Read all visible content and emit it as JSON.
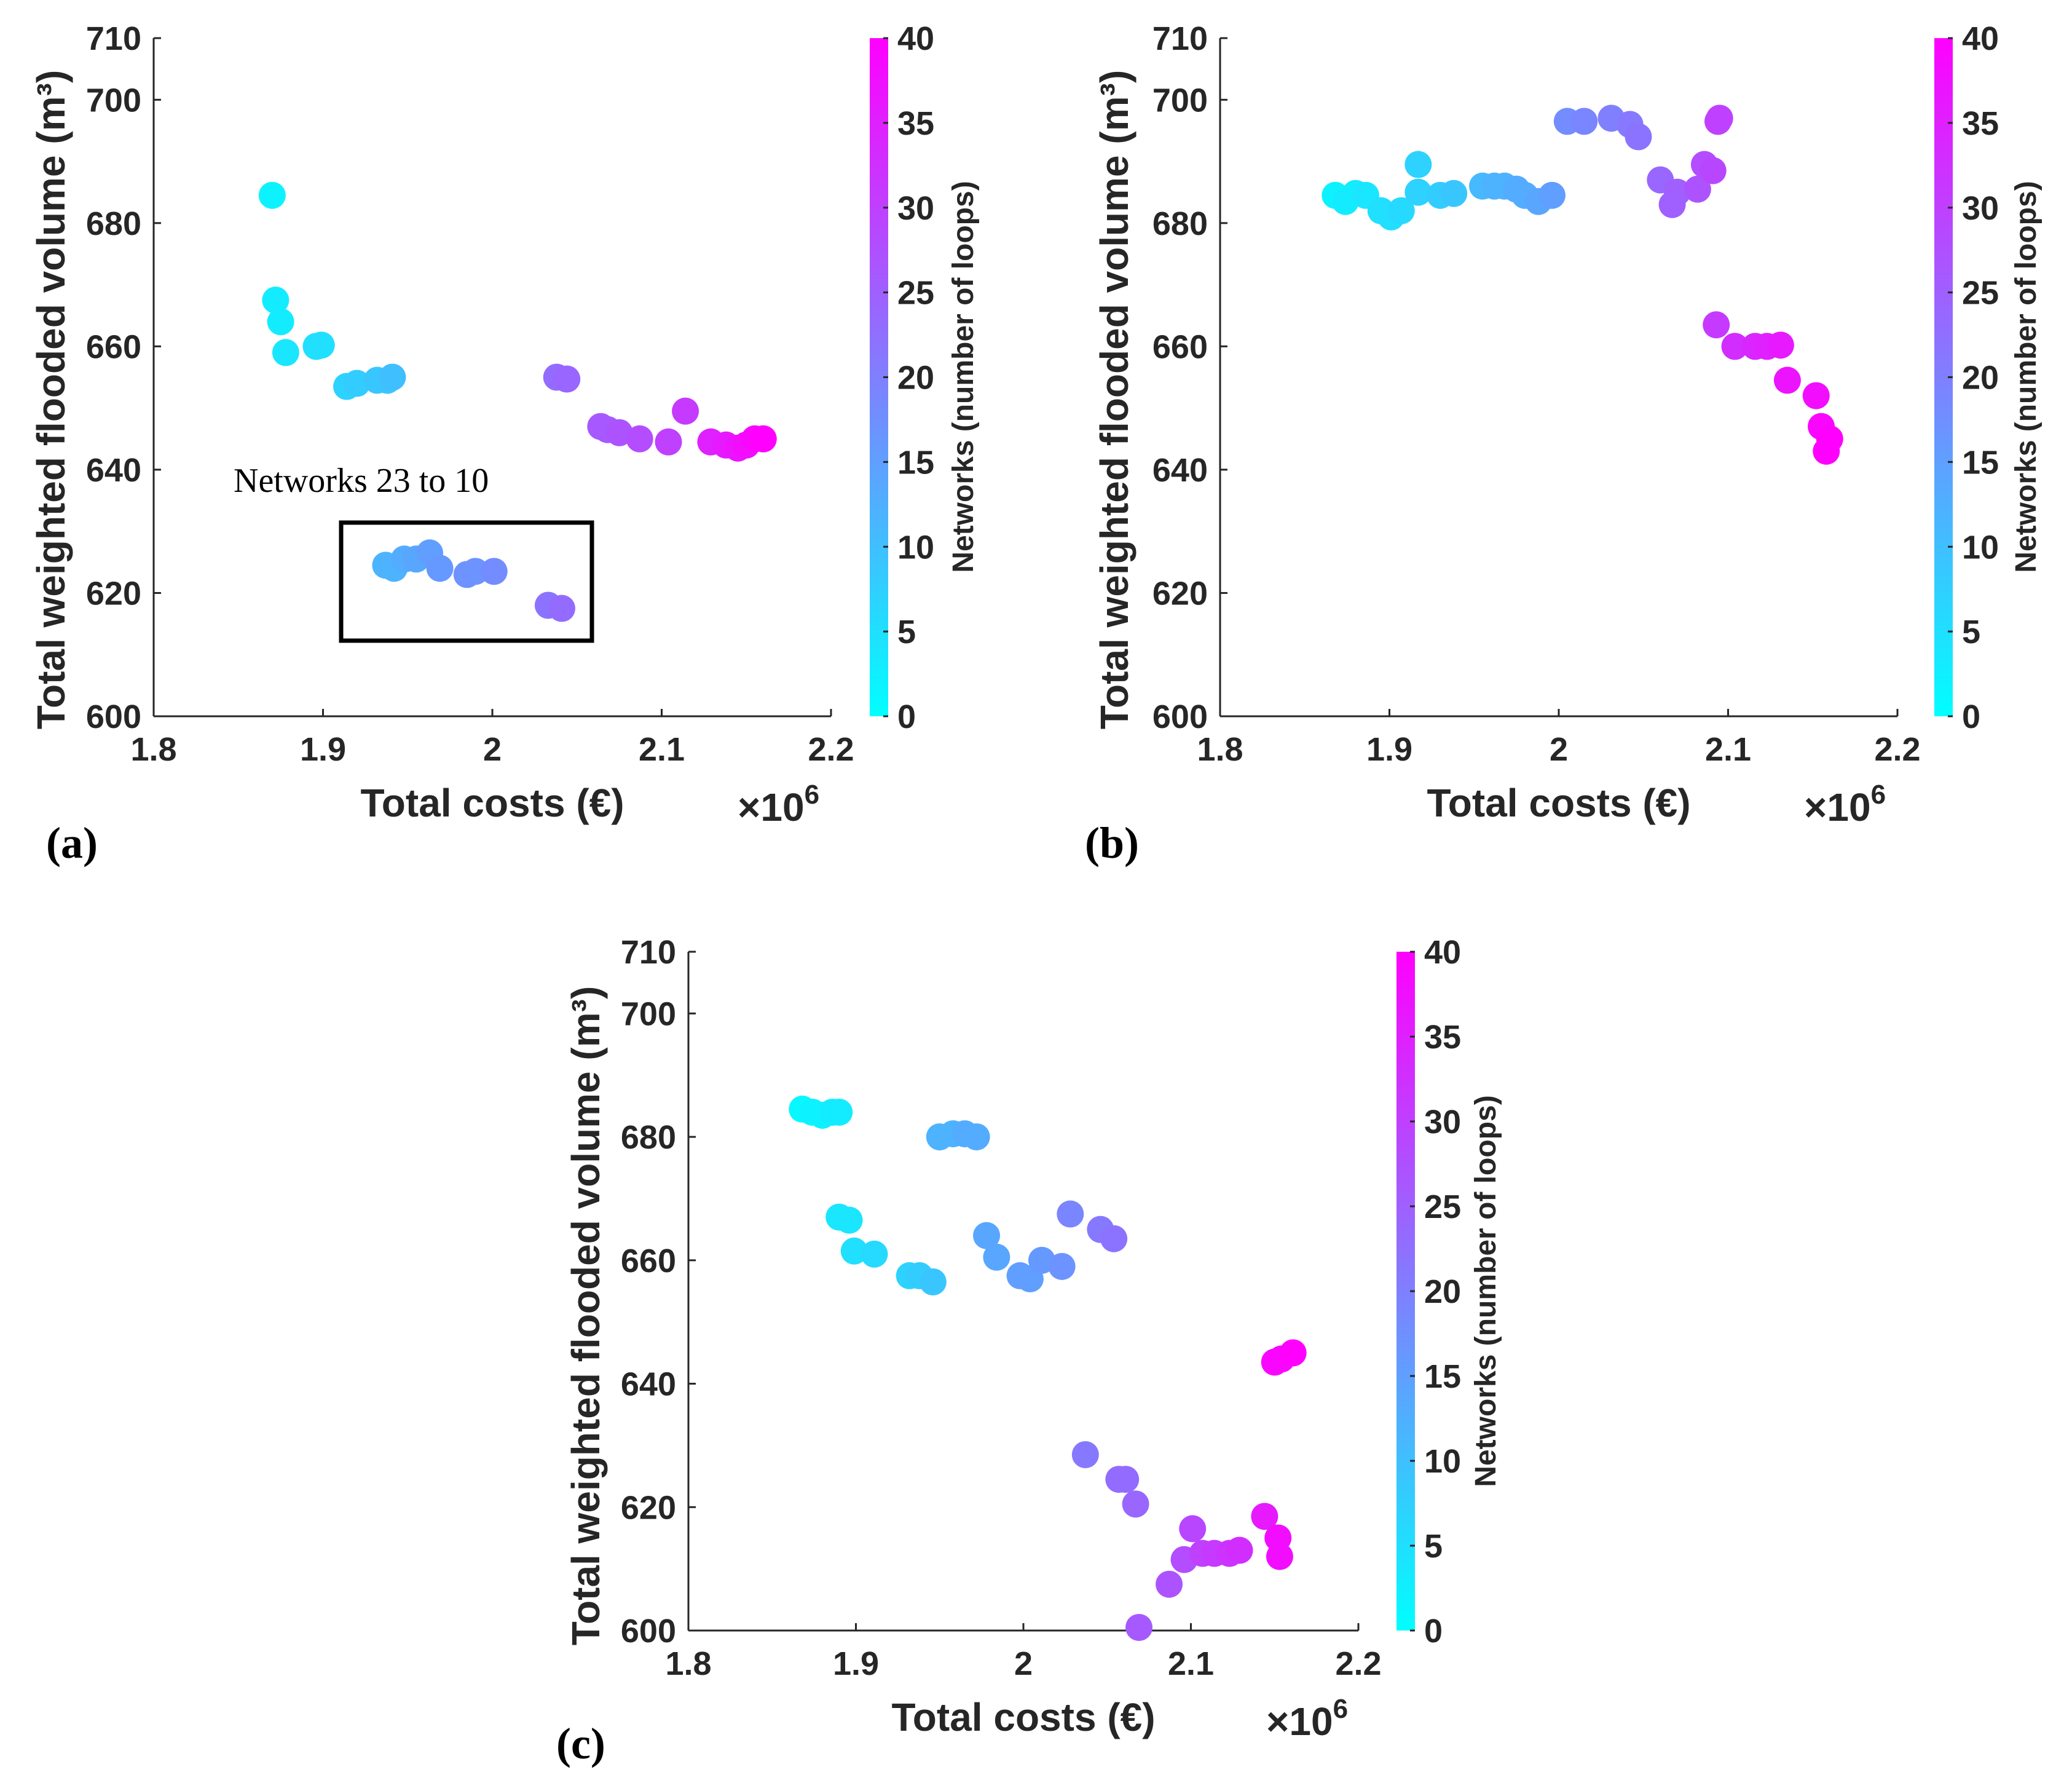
{
  "chart_data": [
    {
      "type": "scatter",
      "panel": "(a)",
      "xlabel": "Total costs (€)",
      "ylabel": "Total weighted flooded volume (m³)",
      "x_multiplier": "×10",
      "x_multiplier_exp": "6",
      "xlim": [
        1.8,
        2.2
      ],
      "ylim": [
        600,
        710
      ],
      "xticks": [
        "1.8",
        "1.9",
        "2",
        "2.1",
        "2.2"
      ],
      "yticks": [
        "600",
        "620",
        "640",
        "660",
        "680",
        "700",
        "710"
      ],
      "colorbar_label": "Networks (number of loops)",
      "colorbar_ticks": [
        "0",
        "5",
        "10",
        "15",
        "20",
        "25",
        "30",
        "35",
        "40"
      ],
      "colorbar_range": [
        0,
        40
      ],
      "annotation": "Networks 23 to 10",
      "points": [
        {
          "x": 1.87,
          "y": 684.5,
          "c": 2
        },
        {
          "x": 1.872,
          "y": 667.5,
          "c": 3
        },
        {
          "x": 1.875,
          "y": 664.0,
          "c": 3
        },
        {
          "x": 1.878,
          "y": 659.0,
          "c": 4
        },
        {
          "x": 1.896,
          "y": 660.0,
          "c": 5
        },
        {
          "x": 1.899,
          "y": 660.2,
          "c": 5
        },
        {
          "x": 1.914,
          "y": 653.5,
          "c": 7
        },
        {
          "x": 1.92,
          "y": 654.0,
          "c": 8
        },
        {
          "x": 1.932,
          "y": 654.5,
          "c": 9
        },
        {
          "x": 1.938,
          "y": 654.5,
          "c": 9
        },
        {
          "x": 1.941,
          "y": 655.0,
          "c": 10
        },
        {
          "x": 2.038,
          "y": 655.0,
          "c": 23
        },
        {
          "x": 2.044,
          "y": 654.7,
          "c": 24
        },
        {
          "x": 2.064,
          "y": 647.0,
          "c": 26
        },
        {
          "x": 2.068,
          "y": 646.5,
          "c": 26
        },
        {
          "x": 2.075,
          "y": 646.0,
          "c": 27
        },
        {
          "x": 2.087,
          "y": 645.0,
          "c": 28
        },
        {
          "x": 2.104,
          "y": 644.5,
          "c": 30
        },
        {
          "x": 2.114,
          "y": 649.5,
          "c": 31
        },
        {
          "x": 2.129,
          "y": 644.5,
          "c": 35
        },
        {
          "x": 2.138,
          "y": 644.0,
          "c": 36
        },
        {
          "x": 2.145,
          "y": 643.5,
          "c": 37
        },
        {
          "x": 2.15,
          "y": 644.0,
          "c": 38
        },
        {
          "x": 2.155,
          "y": 645.0,
          "c": 39
        },
        {
          "x": 2.16,
          "y": 645.0,
          "c": 40
        },
        {
          "x": 1.937,
          "y": 624.5,
          "c": 12
        },
        {
          "x": 1.942,
          "y": 624.0,
          "c": 12
        },
        {
          "x": 1.948,
          "y": 625.5,
          "c": 13
        },
        {
          "x": 1.955,
          "y": 625.5,
          "c": 14
        },
        {
          "x": 1.963,
          "y": 626.5,
          "c": 15
        },
        {
          "x": 1.969,
          "y": 624.0,
          "c": 16
        },
        {
          "x": 1.985,
          "y": 623.0,
          "c": 17
        },
        {
          "x": 1.99,
          "y": 623.5,
          "c": 17
        },
        {
          "x": 2.001,
          "y": 623.5,
          "c": 18
        },
        {
          "x": 2.033,
          "y": 618.0,
          "c": 22
        },
        {
          "x": 2.041,
          "y": 617.5,
          "c": 23
        }
      ]
    },
    {
      "type": "scatter",
      "panel": "(b)",
      "xlabel": "Total costs (€)",
      "ylabel": "Total weighted flooded volume (m³)",
      "x_multiplier": "×10",
      "x_multiplier_exp": "6",
      "xlim": [
        1.8,
        2.2
      ],
      "ylim": [
        600,
        710
      ],
      "xticks": [
        "1.8",
        "1.9",
        "2",
        "2.1",
        "2.2"
      ],
      "yticks": [
        "600",
        "620",
        "640",
        "660",
        "680",
        "700",
        "710"
      ],
      "colorbar_label": "Networks (number of loops)",
      "colorbar_ticks": [
        "0",
        "5",
        "10",
        "15",
        "20",
        "25",
        "30",
        "35",
        "40"
      ],
      "colorbar_range": [
        0,
        40
      ],
      "points": [
        {
          "x": 1.868,
          "y": 684.5,
          "c": 2
        },
        {
          "x": 1.874,
          "y": 683.5,
          "c": 3
        },
        {
          "x": 1.88,
          "y": 684.8,
          "c": 3
        },
        {
          "x": 1.886,
          "y": 684.5,
          "c": 4
        },
        {
          "x": 1.895,
          "y": 682.0,
          "c": 5
        },
        {
          "x": 1.901,
          "y": 681.0,
          "c": 5
        },
        {
          "x": 1.907,
          "y": 682.0,
          "c": 6
        },
        {
          "x": 1.917,
          "y": 689.5,
          "c": 7
        },
        {
          "x": 1.917,
          "y": 685.0,
          "c": 7
        },
        {
          "x": 1.93,
          "y": 684.5,
          "c": 8
        },
        {
          "x": 1.938,
          "y": 684.8,
          "c": 9
        },
        {
          "x": 1.955,
          "y": 686.0,
          "c": 11
        },
        {
          "x": 1.962,
          "y": 686.0,
          "c": 12
        },
        {
          "x": 1.968,
          "y": 686.0,
          "c": 12
        },
        {
          "x": 1.975,
          "y": 685.5,
          "c": 13
        },
        {
          "x": 1.98,
          "y": 684.5,
          "c": 13
        },
        {
          "x": 1.988,
          "y": 683.5,
          "c": 14
        },
        {
          "x": 1.996,
          "y": 684.5,
          "c": 15
        },
        {
          "x": 2.005,
          "y": 696.5,
          "c": 18
        },
        {
          "x": 2.015,
          "y": 696.5,
          "c": 19
        },
        {
          "x": 2.031,
          "y": 697.0,
          "c": 20
        },
        {
          "x": 2.042,
          "y": 696.0,
          "c": 21
        },
        {
          "x": 2.047,
          "y": 694.0,
          "c": 22
        },
        {
          "x": 2.06,
          "y": 687.0,
          "c": 24
        },
        {
          "x": 2.067,
          "y": 683.0,
          "c": 25
        },
        {
          "x": 2.07,
          "y": 685.0,
          "c": 25
        },
        {
          "x": 2.082,
          "y": 685.5,
          "c": 27
        },
        {
          "x": 2.086,
          "y": 689.5,
          "c": 28
        },
        {
          "x": 2.091,
          "y": 688.5,
          "c": 29
        },
        {
          "x": 2.094,
          "y": 696.5,
          "c": 30
        },
        {
          "x": 2.095,
          "y": 697.0,
          "c": 30
        },
        {
          "x": 2.093,
          "y": 663.5,
          "c": 31
        },
        {
          "x": 2.104,
          "y": 660.0,
          "c": 33
        },
        {
          "x": 2.116,
          "y": 660.0,
          "c": 34
        },
        {
          "x": 2.123,
          "y": 660.0,
          "c": 35
        },
        {
          "x": 2.131,
          "y": 660.2,
          "c": 36
        },
        {
          "x": 2.135,
          "y": 654.5,
          "c": 37
        },
        {
          "x": 2.152,
          "y": 652.0,
          "c": 38
        },
        {
          "x": 2.155,
          "y": 647.0,
          "c": 39
        },
        {
          "x": 2.16,
          "y": 645.0,
          "c": 40
        },
        {
          "x": 2.158,
          "y": 643.0,
          "c": 40
        }
      ]
    },
    {
      "type": "scatter",
      "panel": "(c)",
      "xlabel": "Total costs (€)",
      "ylabel": "Total weighted flooded volume (m³)",
      "x_multiplier": "×10",
      "x_multiplier_exp": "6",
      "xlim": [
        1.8,
        2.2
      ],
      "ylim": [
        600,
        710
      ],
      "xticks": [
        "1.8",
        "1.9",
        "2",
        "2.1",
        "2.2"
      ],
      "yticks": [
        "600",
        "620",
        "640",
        "660",
        "680",
        "700",
        "710"
      ],
      "colorbar_label": "Networks (number of loops)",
      "colorbar_ticks": [
        "0",
        "5",
        "10",
        "15",
        "20",
        "25",
        "30",
        "35",
        "40"
      ],
      "colorbar_range": [
        0,
        40
      ],
      "points": [
        {
          "x": 1.868,
          "y": 684.5,
          "c": 1
        },
        {
          "x": 1.874,
          "y": 684.0,
          "c": 2
        },
        {
          "x": 1.88,
          "y": 683.5,
          "c": 2
        },
        {
          "x": 1.886,
          "y": 684.0,
          "c": 3
        },
        {
          "x": 1.89,
          "y": 684.0,
          "c": 3
        },
        {
          "x": 1.89,
          "y": 667.0,
          "c": 4
        },
        {
          "x": 1.896,
          "y": 666.5,
          "c": 4
        },
        {
          "x": 1.899,
          "y": 661.5,
          "c": 5
        },
        {
          "x": 1.911,
          "y": 661.0,
          "c": 6
        },
        {
          "x": 1.932,
          "y": 657.5,
          "c": 7
        },
        {
          "x": 1.938,
          "y": 657.5,
          "c": 8
        },
        {
          "x": 1.946,
          "y": 656.5,
          "c": 9
        },
        {
          "x": 1.95,
          "y": 680.0,
          "c": 12
        },
        {
          "x": 1.958,
          "y": 680.5,
          "c": 12
        },
        {
          "x": 1.965,
          "y": 680.5,
          "c": 13
        },
        {
          "x": 1.972,
          "y": 680.0,
          "c": 13
        },
        {
          "x": 1.978,
          "y": 664.0,
          "c": 14
        },
        {
          "x": 1.984,
          "y": 660.5,
          "c": 14
        },
        {
          "x": 1.998,
          "y": 657.5,
          "c": 15
        },
        {
          "x": 2.004,
          "y": 657.0,
          "c": 15
        },
        {
          "x": 2.011,
          "y": 660.0,
          "c": 16
        },
        {
          "x": 2.023,
          "y": 659.0,
          "c": 17
        },
        {
          "x": 2.028,
          "y": 667.5,
          "c": 19
        },
        {
          "x": 2.046,
          "y": 665.0,
          "c": 21
        },
        {
          "x": 2.054,
          "y": 663.5,
          "c": 22
        },
        {
          "x": 2.037,
          "y": 628.5,
          "c": 21
        },
        {
          "x": 2.057,
          "y": 624.5,
          "c": 23
        },
        {
          "x": 2.061,
          "y": 624.5,
          "c": 23
        },
        {
          "x": 2.067,
          "y": 620.5,
          "c": 24
        },
        {
          "x": 2.069,
          "y": 600.5,
          "c": 26
        },
        {
          "x": 2.087,
          "y": 607.5,
          "c": 27
        },
        {
          "x": 2.096,
          "y": 611.5,
          "c": 28
        },
        {
          "x": 2.101,
          "y": 616.5,
          "c": 29
        },
        {
          "x": 2.107,
          "y": 612.5,
          "c": 30
        },
        {
          "x": 2.114,
          "y": 612.5,
          "c": 31
        },
        {
          "x": 2.123,
          "y": 612.5,
          "c": 32
        },
        {
          "x": 2.129,
          "y": 613.0,
          "c": 33
        },
        {
          "x": 2.144,
          "y": 618.5,
          "c": 36
        },
        {
          "x": 2.152,
          "y": 615.0,
          "c": 38
        },
        {
          "x": 2.153,
          "y": 612.0,
          "c": 38
        },
        {
          "x": 2.15,
          "y": 643.5,
          "c": 39
        },
        {
          "x": 2.154,
          "y": 644.0,
          "c": 39
        },
        {
          "x": 2.161,
          "y": 645.0,
          "c": 40
        }
      ]
    }
  ]
}
